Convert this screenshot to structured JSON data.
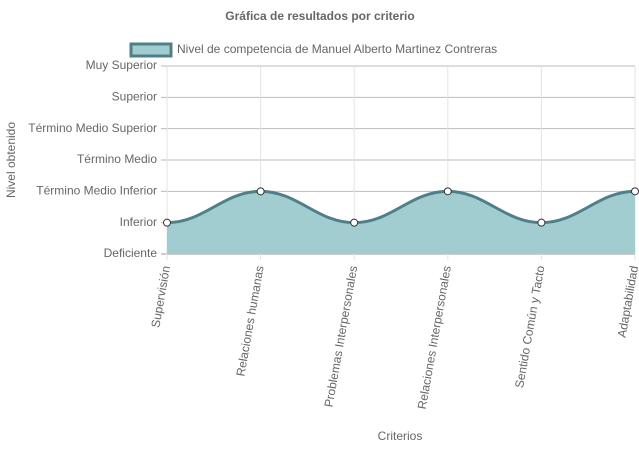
{
  "chart_data": {
    "type": "area",
    "title": "Gráfica de resultados por criterio",
    "x_label": "Criterios",
    "y_label": "Nivel obtenido",
    "categories": [
      "Supervisión",
      "Relaciones humanas",
      "Problemas Interpersonales",
      "Relaciones Interpersonales",
      "Sentido Común y Tacto",
      "Adaptabilidad"
    ],
    "series": [
      {
        "name": "Nivel de competencia de Manuel Alberto Martinez Contreras",
        "color": "#4f7f87",
        "fill": "#a1cdd1",
        "values": [
          1,
          2,
          1,
          2,
          1,
          2
        ]
      }
    ],
    "ylim": [
      0,
      6
    ],
    "yticks": [
      {
        "value": 0,
        "label": "Deficiente"
      },
      {
        "value": 1,
        "label": "Inferior"
      },
      {
        "value": 2,
        "label": "Término Medio Inferior"
      },
      {
        "value": 3,
        "label": "Término Medio"
      },
      {
        "value": 4,
        "label": "Término Medio Superior"
      },
      {
        "value": 5,
        "label": "Superior"
      },
      {
        "value": 6,
        "label": "Muy Superior"
      }
    ],
    "grid": true
  }
}
